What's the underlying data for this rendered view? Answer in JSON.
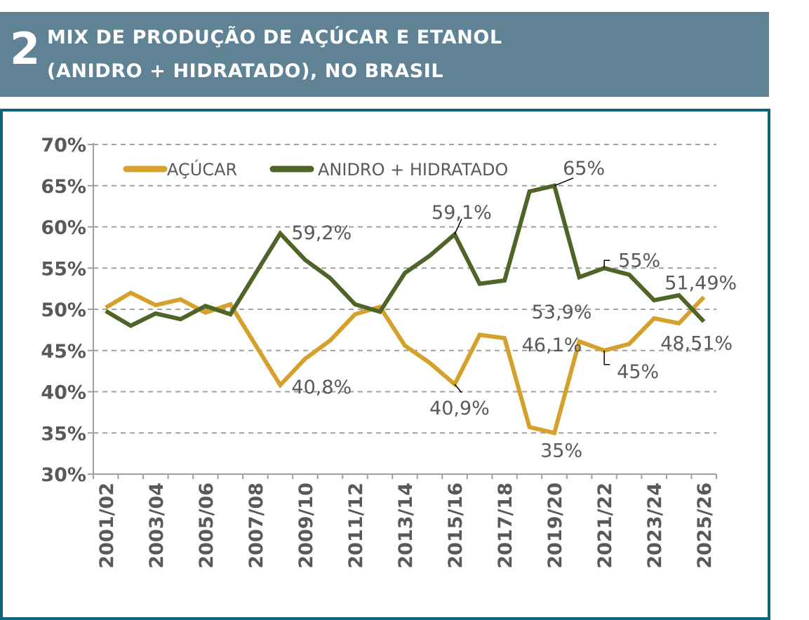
{
  "header": {
    "number": "2",
    "title_line1": "MIX DE PRODUÇÃO DE AÇÚCAR E ETANOL",
    "title_line2": "(ANIDRO + HIDRATADO), NO BRASIL"
  },
  "colors": {
    "title_bg": "#5f8294",
    "frame": "#0e6478",
    "acucar": "#d4a22c",
    "etanol": "#4f6528",
    "text": "#58595b",
    "grid": "#a0a0a0"
  },
  "chart_data": {
    "type": "line",
    "title": "MIX DE PRODUÇÃO DE AÇÚCAR E ETANOL (ANIDRO + HIDRATADO), NO BRASIL",
    "xlabel": "",
    "ylabel": "",
    "ylim": [
      30,
      70
    ],
    "yticks": [
      30,
      35,
      40,
      45,
      50,
      55,
      60,
      65,
      70
    ],
    "ytick_labels": [
      "30%",
      "35%",
      "40%",
      "45%",
      "50%",
      "55%",
      "60%",
      "65%",
      "70%"
    ],
    "grid": true,
    "legend_position": "top",
    "categories": [
      "2001/02",
      "2002/03",
      "2003/04",
      "2004/05",
      "2005/06",
      "2006/07",
      "2007/08",
      "2008/09",
      "2009/10",
      "2010/11",
      "2011/12",
      "2012/13",
      "2013/14",
      "2014/15",
      "2015/16",
      "2016/17",
      "2017/18",
      "2018/19",
      "2019/20",
      "2020/21",
      "2021/22",
      "2022/23",
      "2023/24",
      "2024/25",
      "2025/26"
    ],
    "xtick_labels": [
      "2001/02",
      "2003/04",
      "2005/06",
      "2007/08",
      "2009/10",
      "2011/12",
      "2013/14",
      "2015/16",
      "2017/18",
      "2019/20",
      "2021/22",
      "2023/24",
      "2025/26"
    ],
    "series": [
      {
        "name": "AÇÚCAR",
        "color": "#d4a22c",
        "values": [
          50.2,
          52.0,
          50.5,
          51.2,
          49.6,
          50.6,
          45.7,
          40.8,
          44.0,
          46.2,
          49.4,
          50.3,
          45.6,
          43.5,
          40.9,
          46.9,
          46.5,
          35.7,
          35.0,
          46.1,
          45.0,
          45.8,
          48.9,
          48.3,
          51.49
        ]
      },
      {
        "name": "ANIDRO + HIDRATADO",
        "color": "#4f6528",
        "values": [
          49.8,
          48.0,
          49.5,
          48.8,
          50.4,
          49.4,
          54.3,
          59.2,
          56.0,
          53.8,
          50.6,
          49.7,
          54.4,
          56.5,
          59.1,
          53.1,
          53.5,
          64.3,
          65.0,
          53.9,
          55.0,
          54.2,
          51.1,
          51.7,
          48.51
        ]
      }
    ],
    "annotations": [
      {
        "series": "ANIDRO + HIDRATADO",
        "category": "2008/09",
        "text": "59,2%"
      },
      {
        "series": "AÇÚCAR",
        "category": "2008/09",
        "text": "40,8%"
      },
      {
        "series": "ANIDRO + HIDRATADO",
        "category": "2015/16",
        "text": "59,1%"
      },
      {
        "series": "AÇÚCAR",
        "category": "2015/16",
        "text": "40,9%"
      },
      {
        "series": "ANIDRO + HIDRATADO",
        "category": "2019/20",
        "text": "65%"
      },
      {
        "series": "AÇÚCAR",
        "category": "2019/20",
        "text": "35%"
      },
      {
        "series": "ANIDRO + HIDRATADO",
        "category": "2020/21",
        "text": "53,9%"
      },
      {
        "series": "AÇÚCAR",
        "category": "2020/21",
        "text": "46,1%"
      },
      {
        "series": "ANIDRO + HIDRATADO",
        "category": "2021/22",
        "text": "55%"
      },
      {
        "series": "AÇÚCAR",
        "category": "2021/22",
        "text": "45%"
      },
      {
        "series": "AÇÚCAR",
        "category": "2025/26",
        "text": "51,49%"
      },
      {
        "series": "ANIDRO + HIDRATADO",
        "category": "2025/26",
        "text": "48,51%"
      }
    ]
  }
}
